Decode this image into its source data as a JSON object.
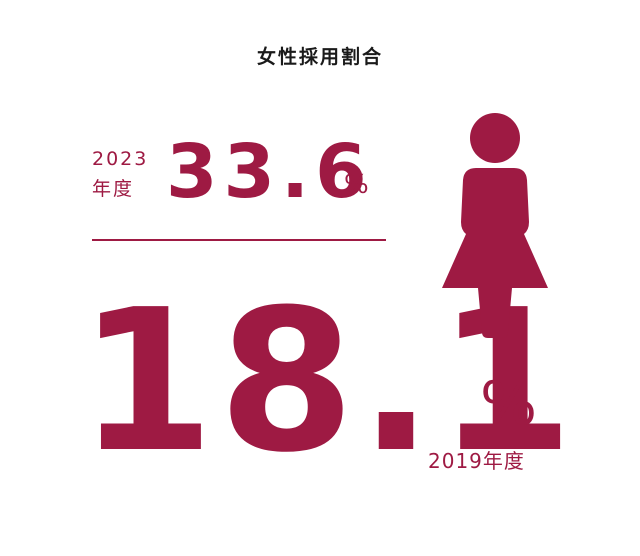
{
  "title": "女性採用割合",
  "recent": {
    "year_num": "2023",
    "year_suffix": "年度",
    "value": "33.6",
    "unit": "%"
  },
  "past": {
    "value": "18.1",
    "unit": "%",
    "year": "2019年度"
  },
  "colors": {
    "accent": "#9e1a43",
    "title": "#1a1a1a"
  },
  "icon": "female-figure-icon",
  "chart_data": {
    "type": "table",
    "title": "女性採用割合",
    "categories": [
      "2023年度",
      "2019年度"
    ],
    "values": [
      33.6,
      18.1
    ],
    "unit": "%"
  }
}
